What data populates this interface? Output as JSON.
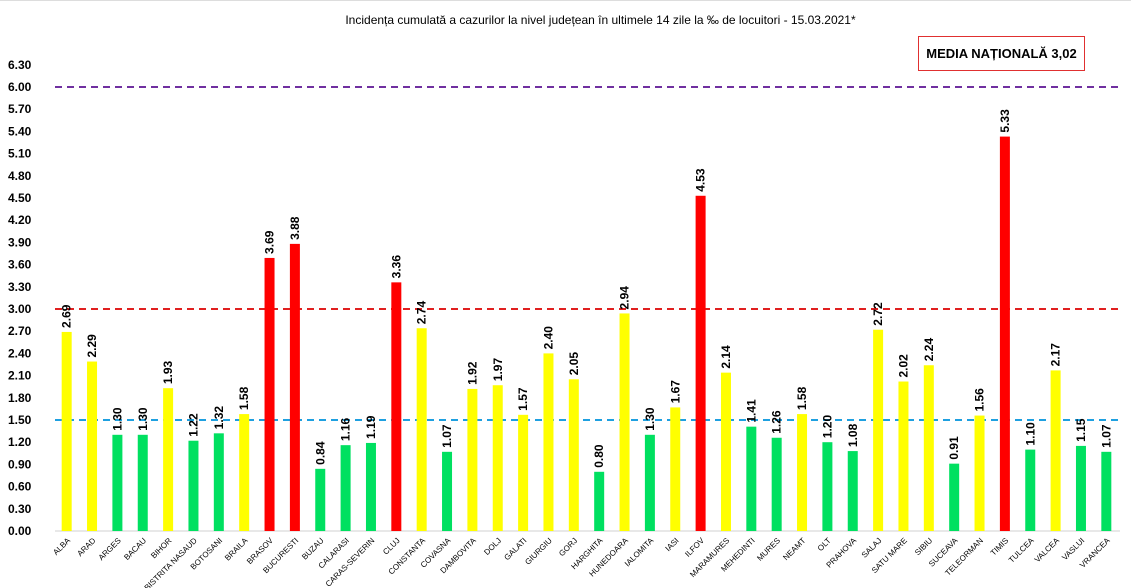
{
  "chart_data": {
    "type": "bar",
    "title": "Incidența cumulată a cazurilor la nivel județean în ultimele 14 zile   la ‰ de locuitori  - 15.03.2021*",
    "annotation": "MEDIA NAȚIONALĂ 3,02",
    "ylim": [
      0,
      6.3
    ],
    "ytick_step": 0.3,
    "grid": false,
    "categories": [
      "ALBA",
      "ARAD",
      "ARGES",
      "BACAU",
      "BIHOR",
      "BISTRITA NASAUD",
      "BOTOSANI",
      "BRAILA",
      "BRASOV",
      "BUCURESTI",
      "BUZAU",
      "CALARASI",
      "CARAS-SEVERIN",
      "CLUJ",
      "CONSTANTA",
      "COVASNA",
      "DAMBOVITA",
      "DOLJ",
      "GALATI",
      "GIURGIU",
      "GORJ",
      "HARGHITA",
      "HUNEDOARA",
      "IALOMITA",
      "IASI",
      "ILFOV",
      "MARAMURES",
      "MEHEDINTI",
      "MURES",
      "NEAMT",
      "OLT",
      "PRAHOVA",
      "SALAJ",
      "SATU MARE",
      "SIBIU",
      "SUCEAVA",
      "TELEORMAN",
      "TIMIS",
      "TULCEA",
      "VALCEA",
      "VASLUI",
      "VRANCEA"
    ],
    "values": [
      2.69,
      2.29,
      1.3,
      1.3,
      1.93,
      1.22,
      1.32,
      1.58,
      3.69,
      3.88,
      0.84,
      1.16,
      1.19,
      3.36,
      2.74,
      1.07,
      1.92,
      1.97,
      1.57,
      2.4,
      2.05,
      0.8,
      2.94,
      1.3,
      1.67,
      4.53,
      2.14,
      1.41,
      1.26,
      1.58,
      1.2,
      1.08,
      2.72,
      2.02,
      2.24,
      0.91,
      1.56,
      5.33,
      1.1,
      2.17,
      1.15,
      1.07
    ],
    "thresholds": [
      {
        "value": 6.0,
        "color": "#7030a0"
      },
      {
        "value": 3.0,
        "color": "#e02020"
      },
      {
        "value": 1.5,
        "color": "#1ea0e0"
      }
    ],
    "colors": {
      "green": "#00e060",
      "yellow": "#ffff00",
      "red": "#ff0000"
    }
  }
}
